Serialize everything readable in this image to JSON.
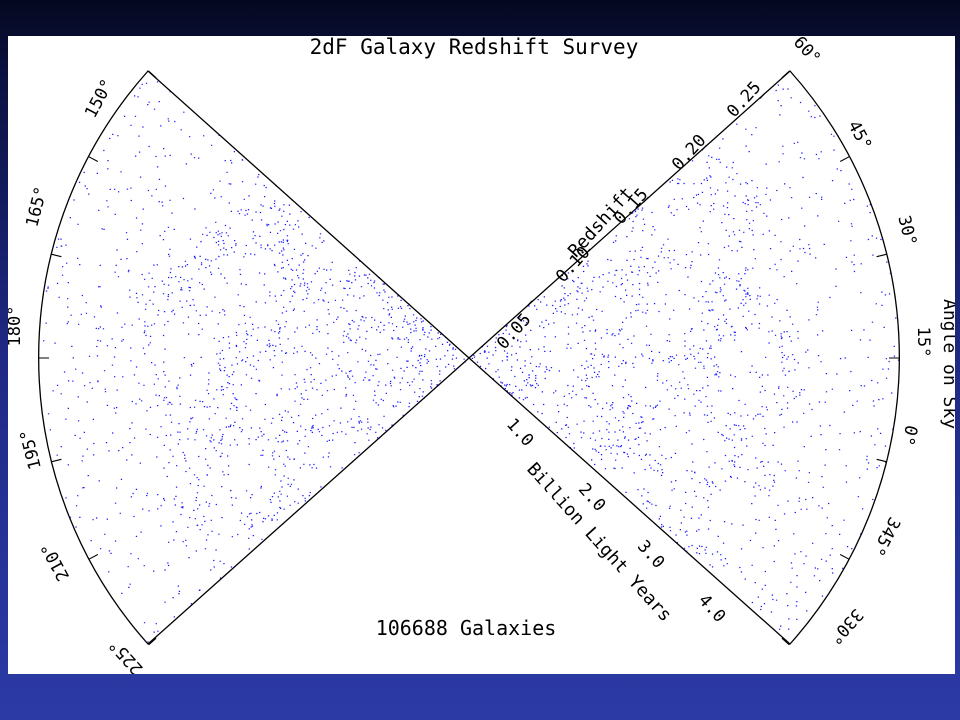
{
  "title": "2dF Galaxy Redshift Survey",
  "caption": "106688 Galaxies",
  "colors": {
    "galaxy": "#1a1aff",
    "caption": "#ff0000",
    "panel": "#ffffff"
  },
  "redshift": {
    "axis_label": "Redshift",
    "ticks": [
      "0.05",
      "0.10",
      "0.15",
      "0.20",
      "0.25"
    ]
  },
  "distance": {
    "axis_label": "Billion Light Years",
    "ticks": [
      "1.0",
      "2.0",
      "3.0",
      "4.0"
    ]
  },
  "angle": {
    "axis_label": "Angle on Sky",
    "left_ticks": [
      "150°",
      "165°",
      "180°",
      "195°",
      "210°",
      "225°"
    ],
    "right_ticks": [
      "60°",
      "45°",
      "30°",
      "15°",
      "0°",
      "345°",
      "330°"
    ]
  }
}
